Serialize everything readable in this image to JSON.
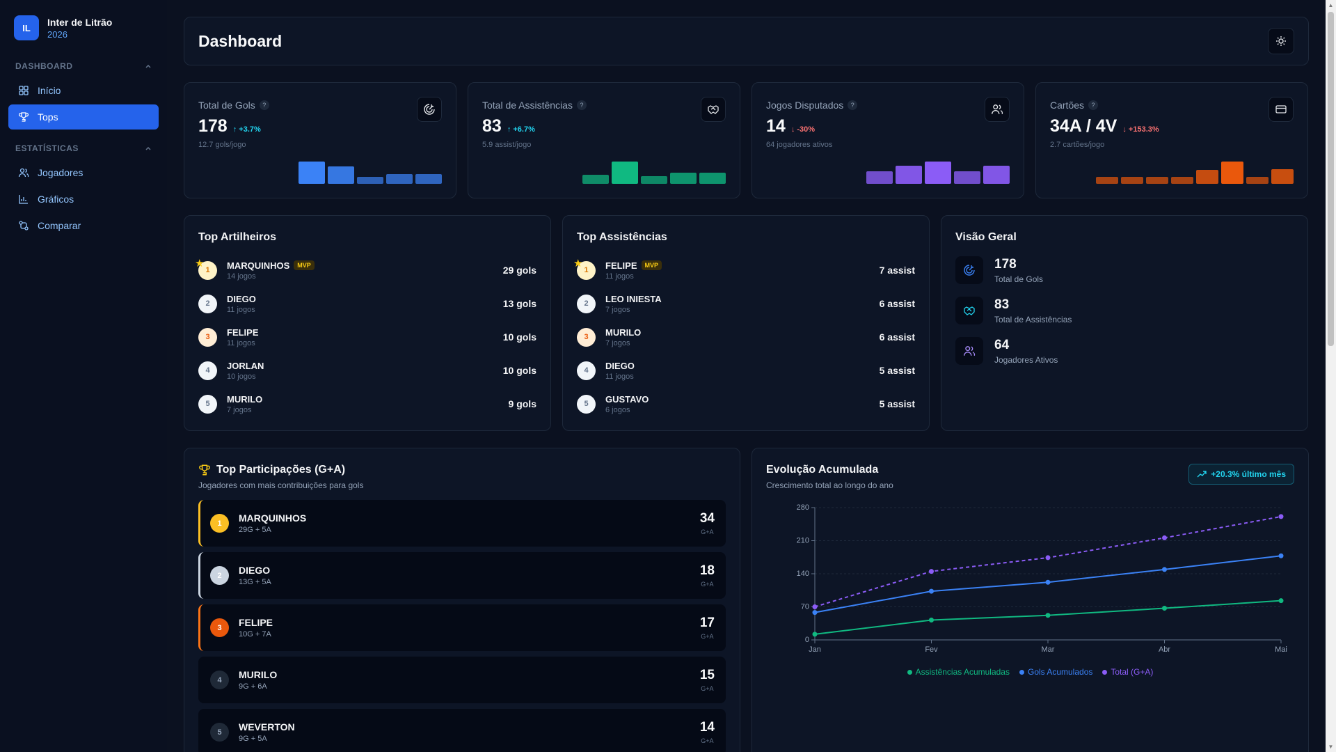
{
  "brand": {
    "initials": "IL",
    "name": "Inter de Litrão",
    "year": "2026"
  },
  "nav": {
    "section1": "DASHBOARD",
    "section1_items": [
      {
        "label": "Início",
        "icon": "grid-icon"
      },
      {
        "label": "Tops",
        "icon": "trophy-icon",
        "active": true
      }
    ],
    "section2": "ESTATÍSTICAS",
    "section2_items": [
      {
        "label": "Jogadores",
        "icon": "users-icon"
      },
      {
        "label": "Gráficos",
        "icon": "chart-icon"
      },
      {
        "label": "Comparar",
        "icon": "compare-icon"
      }
    ]
  },
  "header": {
    "title": "Dashboard",
    "theme_icon": "sun-icon"
  },
  "stats": [
    {
      "label": "Total de Gols",
      "value": "178",
      "trend": "↑ +3.7%",
      "trend_dir": "up",
      "sub": "12.7 gols/jogo",
      "icon": "target-icon",
      "bar_color": "#3b82f6",
      "bars": [
        26,
        20,
        8,
        11,
        11
      ]
    },
    {
      "label": "Total de Assistências",
      "value": "83",
      "trend": "↑ +6.7%",
      "trend_dir": "up",
      "sub": "5.9 assist/jogo",
      "icon": "handshake-icon",
      "bar_color": "#10b981",
      "bars": [
        12,
        30,
        10,
        15,
        15
      ]
    },
    {
      "label": "Jogos Disputados",
      "value": "14",
      "trend": "↓ -30%",
      "trend_dir": "down",
      "sub": "64 jogadores ativos",
      "icon": "users-icon",
      "bar_color": "#8b5cf6",
      "bars": [
        18,
        26,
        32,
        18,
        26
      ]
    },
    {
      "label": "Cartões",
      "value": "34A / 4V",
      "trend": "↓ +153.3%",
      "trend_dir": "down",
      "sub": "2.7 cartões/jogo",
      "icon": "card-icon",
      "bar_color": "#ea580c",
      "bars": [
        10,
        10,
        10,
        10,
        20,
        32,
        10,
        21
      ]
    }
  ],
  "top_scorers": {
    "title": "Top Artilheiros",
    "mvp_label": "MVP",
    "rows": [
      {
        "rank": "1",
        "name": "MARQUINHOS",
        "sub": "14 jogos",
        "value": "29 gols"
      },
      {
        "rank": "2",
        "name": "DIEGO",
        "sub": "11 jogos",
        "value": "13 gols"
      },
      {
        "rank": "3",
        "name": "FELIPE",
        "sub": "11 jogos",
        "value": "10 gols"
      },
      {
        "rank": "4",
        "name": "JORLAN",
        "sub": "10 jogos",
        "value": "10 gols"
      },
      {
        "rank": "5",
        "name": "MURILO",
        "sub": "7 jogos",
        "value": "9 gols"
      }
    ]
  },
  "top_assists": {
    "title": "Top Assistências",
    "mvp_label": "MVP",
    "rows": [
      {
        "rank": "1",
        "name": "FELIPE",
        "sub": "11 jogos",
        "value": "7 assist"
      },
      {
        "rank": "2",
        "name": "LEO INIESTA",
        "sub": "7 jogos",
        "value": "6 assist"
      },
      {
        "rank": "3",
        "name": "MURILO",
        "sub": "7 jogos",
        "value": "6 assist"
      },
      {
        "rank": "4",
        "name": "DIEGO",
        "sub": "11 jogos",
        "value": "5 assist"
      },
      {
        "rank": "5",
        "name": "GUSTAVO",
        "sub": "6 jogos",
        "value": "5 assist"
      }
    ]
  },
  "overview": {
    "title": "Visão Geral",
    "items": [
      {
        "value": "178",
        "label": "Total de Gols",
        "icon": "target-icon"
      },
      {
        "value": "83",
        "label": "Total de Assistências",
        "icon": "handshake-icon"
      },
      {
        "value": "64",
        "label": "Jogadores Ativos",
        "icon": "users-icon"
      }
    ]
  },
  "participations": {
    "title": "Top Participações (G+A)",
    "sub": "Jogadores com mais contribuições para gols",
    "unit": "G+A",
    "rows": [
      {
        "rank": "1",
        "name": "MARQUINHOS",
        "sub": "29G  +  5A",
        "total": "34"
      },
      {
        "rank": "2",
        "name": "DIEGO",
        "sub": "13G  +  5A",
        "total": "18"
      },
      {
        "rank": "3",
        "name": "FELIPE",
        "sub": "10G  +  7A",
        "total": "17"
      },
      {
        "rank": "4",
        "name": "MURILO",
        "sub": "9G  +  6A",
        "total": "15"
      },
      {
        "rank": "5",
        "name": "WEVERTON",
        "sub": "9G  +  5A",
        "total": "14"
      }
    ]
  },
  "evolution": {
    "title": "Evolução Acumulada",
    "sub": "Crescimento total ao longo do ano",
    "badge": "+20.3% último mês"
  },
  "chart_data": {
    "type": "line",
    "categories": [
      "Jan",
      "Fev",
      "Mar",
      "Abr",
      "Mai"
    ],
    "ylim": [
      0,
      280
    ],
    "yticks": [
      0,
      70,
      140,
      210,
      280
    ],
    "grid": true,
    "legend_position": "bottom",
    "series": [
      {
        "name": "Assistências Acumuladas",
        "color": "#10b981",
        "dashed": false,
        "values": [
          12,
          42,
          52,
          67,
          83
        ]
      },
      {
        "name": "Gols Acumulados",
        "color": "#3b82f6",
        "dashed": false,
        "values": [
          58,
          103,
          122,
          149,
          178
        ]
      },
      {
        "name": "Total (G+A)",
        "color": "#8b5cf6",
        "dashed": true,
        "values": [
          70,
          145,
          174,
          216,
          261
        ]
      }
    ]
  }
}
